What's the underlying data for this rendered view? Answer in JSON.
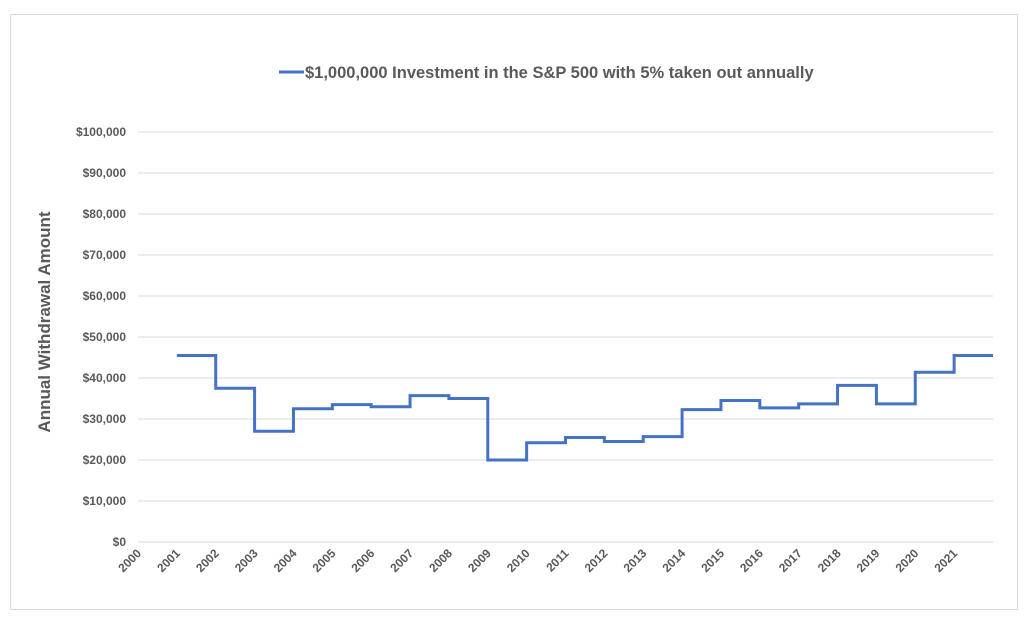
{
  "chart_data": {
    "type": "line",
    "line_style": "step",
    "series": [
      {
        "name": "$1,000,000 Investment in the S&P 500 with 5% taken out annually",
        "color": "#4472c4",
        "x": [
          2001,
          2002,
          2003,
          2004,
          2005,
          2006,
          2007,
          2008,
          2009,
          2010,
          2011,
          2012,
          2013,
          2014,
          2015,
          2016,
          2017,
          2018,
          2019,
          2020,
          2021
        ],
        "values": [
          45500,
          37500,
          27000,
          32500,
          33500,
          33000,
          35700,
          35000,
          20000,
          24200,
          25500,
          24500,
          25700,
          32300,
          34500,
          32700,
          33700,
          38200,
          33700,
          41400,
          45500
        ]
      }
    ],
    "x_tick_labels": [
      "2000",
      "2001",
      "2002",
      "2003",
      "2004",
      "2005",
      "2006",
      "2007",
      "2008",
      "2009",
      "2010",
      "2011",
      "2012",
      "2013",
      "2014",
      "2015",
      "2016",
      "2017",
      "2018",
      "2019",
      "2020",
      "2021"
    ],
    "y_tick_labels": [
      "$0",
      "$10,000",
      "$20,000",
      "$30,000",
      "$40,000",
      "$50,000",
      "$60,000",
      "$70,000",
      "$80,000",
      "$90,000",
      "$100,000"
    ],
    "ylim": [
      0,
      100000
    ],
    "xlim": [
      2000,
      2022
    ],
    "ylabel": "Annual Withdrawal Amount",
    "xlabel": "",
    "title": "",
    "grid": "horizontal",
    "legend_position": "top",
    "gridline_color": "#d9d9d9"
  }
}
